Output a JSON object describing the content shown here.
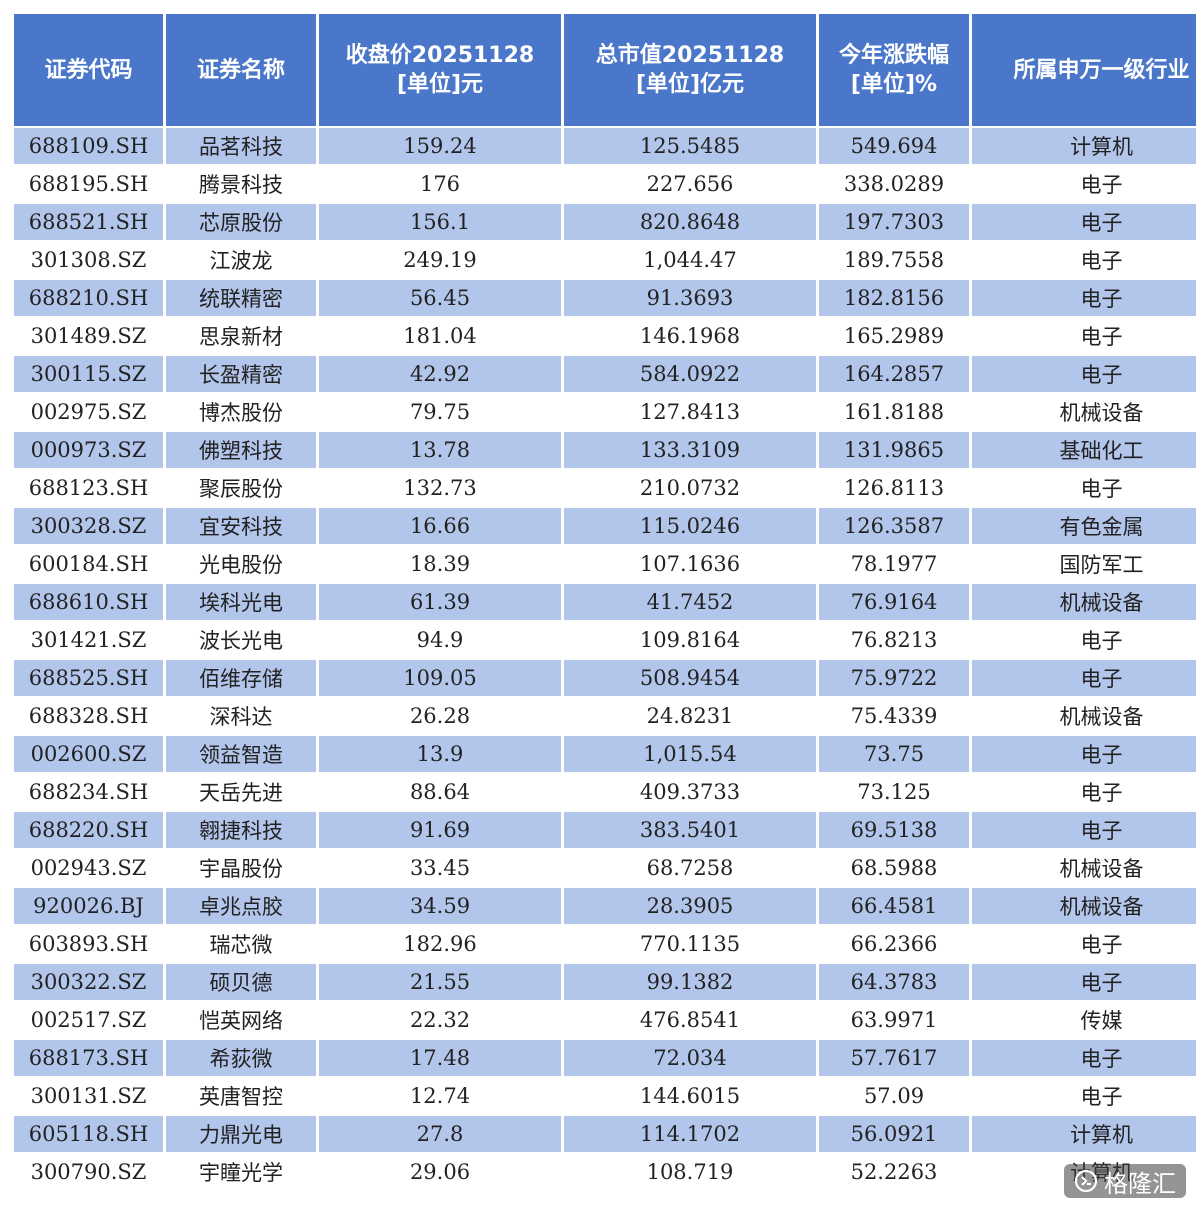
{
  "table": {
    "headers": [
      {
        "lines": [
          "证券代码"
        ]
      },
      {
        "lines": [
          "证券名称"
        ]
      },
      {
        "lines": [
          "收盘价20251128",
          "[单位]元"
        ]
      },
      {
        "lines": [
          "总市值20251128",
          "[单位]亿元"
        ]
      },
      {
        "lines": [
          "今年涨跌幅",
          "[单位]%"
        ]
      },
      {
        "lines": [
          "所属申万一级行业"
        ]
      }
    ],
    "rows": [
      [
        "688109.SH",
        "品茗科技",
        "159.24",
        "125.5485",
        "549.694",
        "计算机"
      ],
      [
        "688195.SH",
        "腾景科技",
        "176",
        "227.656",
        "338.0289",
        "电子"
      ],
      [
        "688521.SH",
        "芯原股份",
        "156.1",
        "820.8648",
        "197.7303",
        "电子"
      ],
      [
        "301308.SZ",
        "江波龙",
        "249.19",
        "1,044.47",
        "189.7558",
        "电子"
      ],
      [
        "688210.SH",
        "统联精密",
        "56.45",
        "91.3693",
        "182.8156",
        "电子"
      ],
      [
        "301489.SZ",
        "思泉新材",
        "181.04",
        "146.1968",
        "165.2989",
        "电子"
      ],
      [
        "300115.SZ",
        "长盈精密",
        "42.92",
        "584.0922",
        "164.2857",
        "电子"
      ],
      [
        "002975.SZ",
        "博杰股份",
        "79.75",
        "127.8413",
        "161.8188",
        "机械设备"
      ],
      [
        "000973.SZ",
        "佛塑科技",
        "13.78",
        "133.3109",
        "131.9865",
        "基础化工"
      ],
      [
        "688123.SH",
        "聚辰股份",
        "132.73",
        "210.0732",
        "126.8113",
        "电子"
      ],
      [
        "300328.SZ",
        "宜安科技",
        "16.66",
        "115.0246",
        "126.3587",
        "有色金属"
      ],
      [
        "600184.SH",
        "光电股份",
        "18.39",
        "107.1636",
        "78.1977",
        "国防军工"
      ],
      [
        "688610.SH",
        "埃科光电",
        "61.39",
        "41.7452",
        "76.9164",
        "机械设备"
      ],
      [
        "301421.SZ",
        "波长光电",
        "94.9",
        "109.8164",
        "76.8213",
        "电子"
      ],
      [
        "688525.SH",
        "佰维存储",
        "109.05",
        "508.9454",
        "75.9722",
        "电子"
      ],
      [
        "688328.SH",
        "深科达",
        "26.28",
        "24.8231",
        "75.4339",
        "机械设备"
      ],
      [
        "002600.SZ",
        "领益智造",
        "13.9",
        "1,015.54",
        "73.75",
        "电子"
      ],
      [
        "688234.SH",
        "天岳先进",
        "88.64",
        "409.3733",
        "73.125",
        "电子"
      ],
      [
        "688220.SH",
        "翱捷科技",
        "91.69",
        "383.5401",
        "69.5138",
        "电子"
      ],
      [
        "002943.SZ",
        "宇晶股份",
        "33.45",
        "68.7258",
        "68.5988",
        "机械设备"
      ],
      [
        "920026.BJ",
        "卓兆点胶",
        "34.59",
        "28.3905",
        "66.4581",
        "机械设备"
      ],
      [
        "603893.SH",
        "瑞芯微",
        "182.96",
        "770.1135",
        "66.2366",
        "电子"
      ],
      [
        "300322.SZ",
        "硕贝德",
        "21.55",
        "99.1382",
        "64.3783",
        "电子"
      ],
      [
        "002517.SZ",
        "恺英网络",
        "22.32",
        "476.8541",
        "63.9971",
        "传媒"
      ],
      [
        "688173.SH",
        "希荻微",
        "17.48",
        "72.034",
        "57.7617",
        "电子"
      ],
      [
        "300131.SZ",
        "英唐智控",
        "12.74",
        "144.6015",
        "57.09",
        "电子"
      ],
      [
        "605118.SH",
        "力鼎光电",
        "27.8",
        "114.1702",
        "56.0921",
        "计算机"
      ],
      [
        "300790.SZ",
        "宇瞳光学",
        "29.06",
        "108.719",
        "52.2263",
        "计算机"
      ]
    ]
  },
  "watermark": {
    "text": "格隆汇",
    "icon": "gelonghui-logo-icon"
  }
}
